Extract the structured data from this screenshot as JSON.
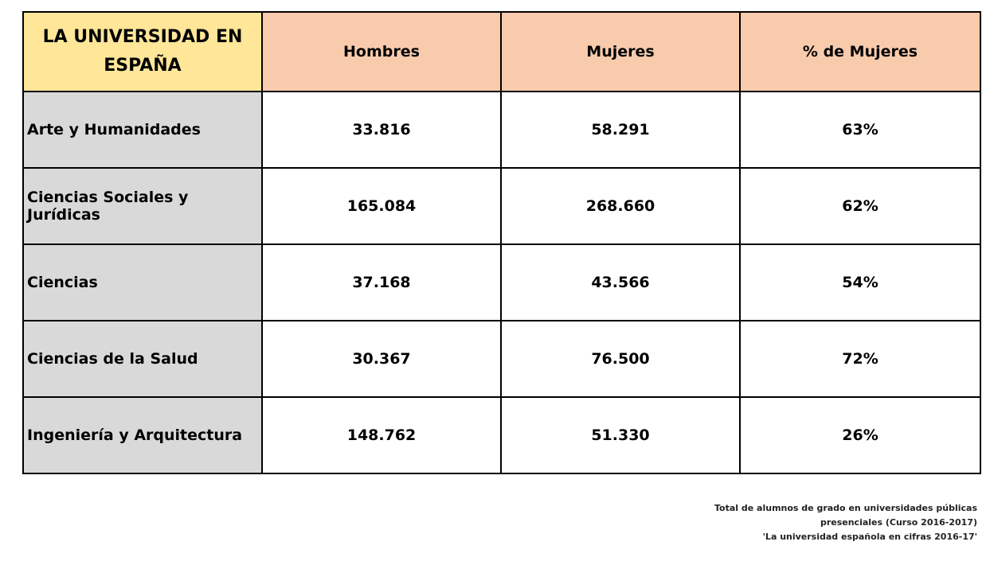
{
  "table": {
    "corner_title": "LA UNIVERSIDAD EN ESPAÑA",
    "columns": [
      "Hombres",
      "Mujeres",
      "% de Mujeres"
    ],
    "rows": [
      {
        "area": "Arte y Humanidades",
        "hombres": "33.816",
        "mujeres": "58.291",
        "pct_mujeres": "63%"
      },
      {
        "area": "Ciencias Sociales y Jurídicas",
        "hombres": "165.084",
        "mujeres": "268.660",
        "pct_mujeres": "62%"
      },
      {
        "area": "Ciencias",
        "hombres": "37.168",
        "mujeres": "43.566",
        "pct_mujeres": "54%"
      },
      {
        "area": "Ciencias de la Salud",
        "hombres": "30.367",
        "mujeres": "76.500",
        "pct_mujeres": "72%"
      },
      {
        "area": "Ingeniería y Arquitectura",
        "hombres": "148.762",
        "mujeres": "51.330",
        "pct_mujeres": "26%"
      }
    ]
  },
  "footnote": {
    "line1": "Total de alumnos de grado en universidades públicas",
    "line2": "presenciales (Curso 2016-2017)",
    "line3": "'La universidad española en cifras 2016-17'"
  },
  "colors": {
    "corner_header": "#ffe699",
    "column_header": "#f8cbad",
    "row_label": "#d9d9d9"
  }
}
